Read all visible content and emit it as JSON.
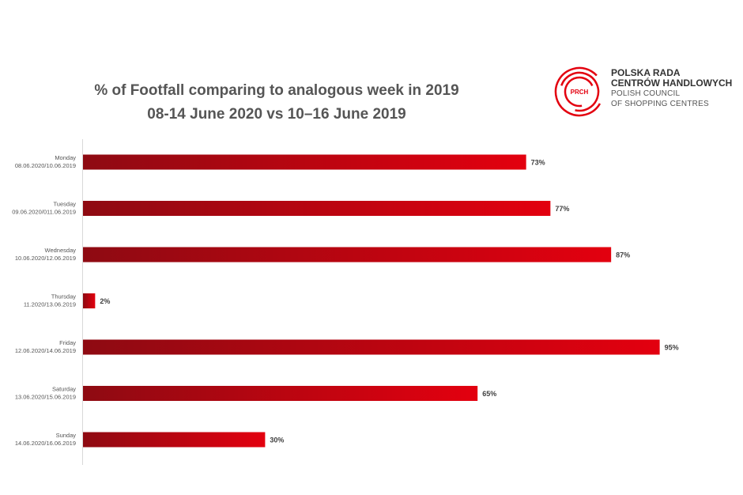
{
  "chart_data": {
    "type": "bar",
    "orientation": "horizontal",
    "title": "% of Footfall comparing to analogous week in 2019",
    "subtitle": "08-14 June 2020 vs 10–16 June 2019",
    "categories": [
      {
        "day": "Monday",
        "dates": "08.06.2020/10.06.2019"
      },
      {
        "day": "Tuesday",
        "dates": "09.06.2020/011.06.2019"
      },
      {
        "day": "Wednesday",
        "dates": "10.06.2020/12.06.2019"
      },
      {
        "day": "Thursday",
        "dates": "11.2020/13.06.2019"
      },
      {
        "day": "Friday",
        "dates": "12.06.2020/14.06.2019"
      },
      {
        "day": "Saturday",
        "dates": "13.06.2020/15.06.2019"
      },
      {
        "day": "Sunday",
        "dates": "14.06.2020/16.06.2019"
      }
    ],
    "values": [
      73,
      77,
      87,
      2,
      95,
      65,
      30
    ],
    "value_labels": [
      "73%",
      "77%",
      "87%",
      "2%",
      "95%",
      "65%",
      "30%"
    ],
    "xlim": [
      0,
      100
    ],
    "grid": false,
    "legend": "none",
    "colors": {
      "bar_dark": "#8e0a12",
      "bar_light": "#e3000f",
      "axis": "#d9d9d9"
    }
  },
  "logo": {
    "badge": "PRCH",
    "line1": "POLSKA RADA",
    "line2": "CENTRÓW HANDLOWYCH",
    "line3": "POLISH COUNCIL",
    "line4": "OF SHOPPING CENTRES",
    "color": "#e3000f"
  }
}
